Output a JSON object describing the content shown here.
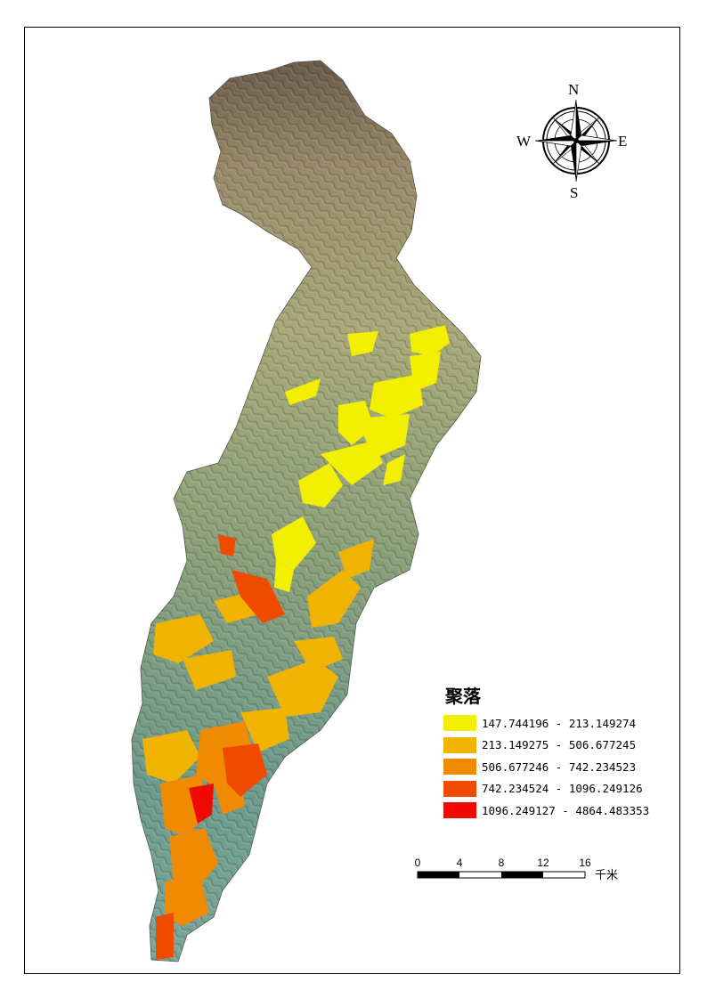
{
  "legend": {
    "title": "聚落",
    "classes": [
      {
        "label": "147.744196 - 213.149274",
        "color": "#f2ef00"
      },
      {
        "label": "213.149275 - 506.677245",
        "color": "#f0b400"
      },
      {
        "label": "506.677246 - 742.234523",
        "color": "#f08a00"
      },
      {
        "label": "742.234524 - 1096.249126",
        "color": "#f04a00"
      },
      {
        "label": "1096.249127 - 4864.483353",
        "color": "#f00a00"
      }
    ]
  },
  "compass": {
    "north": "N",
    "south": "S",
    "east": "E",
    "west": "W"
  },
  "scalebar": {
    "ticks": [
      "0",
      "4",
      "8",
      "12",
      "16"
    ],
    "unit": "千米"
  },
  "colors": {
    "terrain_high": "#7a6a5a",
    "terrain_mid": "#a8a878",
    "terrain_low": "#6e9a8c",
    "frame": "#000000"
  }
}
